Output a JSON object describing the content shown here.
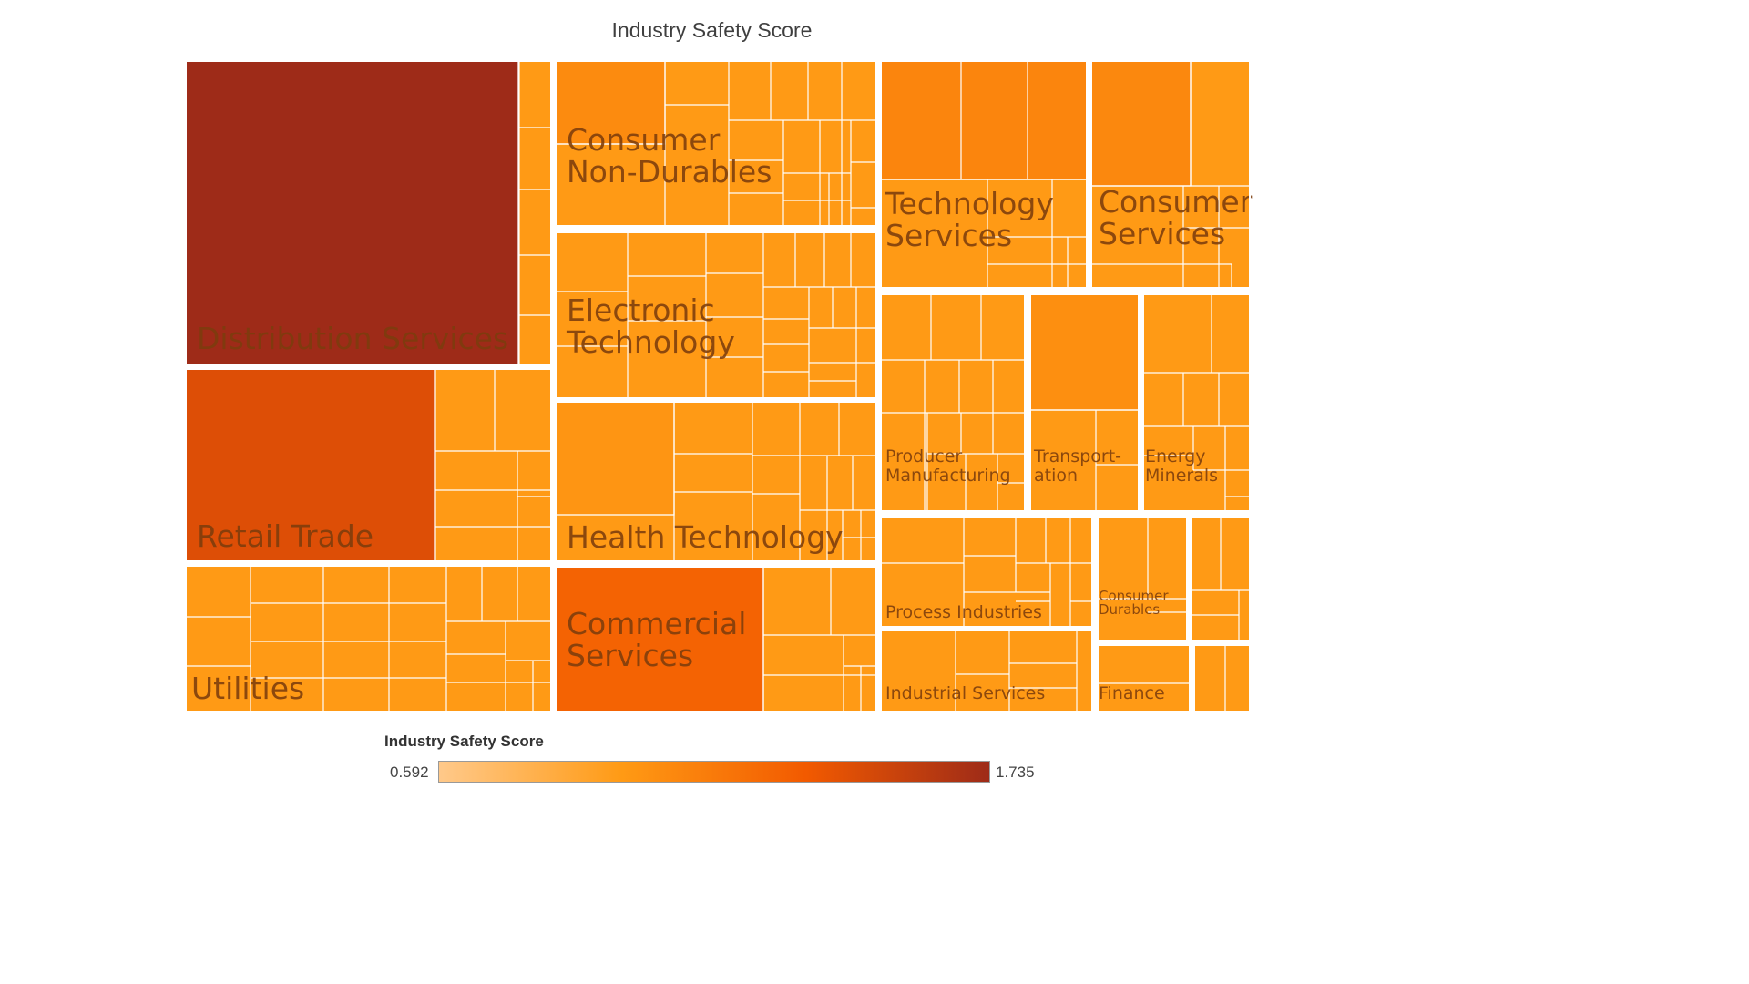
{
  "chart_data": {
    "type": "treemap",
    "title": "Industry Safety Score",
    "color_scale": {
      "min": 0.592,
      "max": 1.735,
      "min_label": "0.592",
      "max_label": "1.735",
      "colors": [
        "#ffc98a",
        "#ff9a14",
        "#f25a00",
        "#9e2b18"
      ]
    },
    "legend": {
      "title": "Industry Safety Score",
      "placement": "bottom-center"
    },
    "sectors": [
      {
        "name": "Distribution Services",
        "label_lines": [
          "Distribution Services"
        ],
        "score": 1.735,
        "label_size": "large"
      },
      {
        "name": "Retail Trade",
        "label_lines": [
          "Retail Trade"
        ],
        "score": 1.45,
        "label_size": "large"
      },
      {
        "name": "Utilities",
        "label_lines": [
          "Utilities"
        ],
        "score": 0.98,
        "label_size": "large"
      },
      {
        "name": "Consumer Non-Durables",
        "label_lines": [
          "Consumer",
          "Non-Durables"
        ],
        "score": 1.06,
        "label_size": "large"
      },
      {
        "name": "Electronic Technology",
        "label_lines": [
          "Electronic",
          "Technology"
        ],
        "score": 1.0,
        "label_size": "large"
      },
      {
        "name": "Health Technology",
        "label_lines": [
          "Health Technology"
        ],
        "score": 1.0,
        "label_size": "large"
      },
      {
        "name": "Commercial Services",
        "label_lines": [
          "Commercial",
          "Services"
        ],
        "score": 1.3,
        "label_size": "large"
      },
      {
        "name": "Technology Services",
        "label_lines": [
          "Technology",
          "Services"
        ],
        "score": 1.1,
        "label_size": "large"
      },
      {
        "name": "Consumer Services",
        "label_lines": [
          "Consumer",
          "Services"
        ],
        "score": 1.08,
        "label_size": "large"
      },
      {
        "name": "Producer Manufacturing",
        "label_lines": [
          "Producer",
          "Manufacturing"
        ],
        "score": 0.97,
        "label_size": "medium"
      },
      {
        "name": "Transportation",
        "label_lines": [
          "Transport-",
          "ation"
        ],
        "score": 1.04,
        "label_size": "medium"
      },
      {
        "name": "Energy Minerals",
        "label_lines": [
          "Energy",
          "Minerals"
        ],
        "score": 0.97,
        "label_size": "medium"
      },
      {
        "name": "Process Industries",
        "label_lines": [
          "Process Industries"
        ],
        "score": 0.98,
        "label_size": "medium"
      },
      {
        "name": "Consumer Durables",
        "label_lines": [
          "Consumer",
          "Durables"
        ],
        "score": 0.97,
        "label_size": "small"
      },
      {
        "name": "Industrial Services",
        "label_lines": [
          "Industrial Services"
        ],
        "score": 0.97,
        "label_size": "medium"
      },
      {
        "name": "Finance",
        "label_lines": [
          "Finance"
        ],
        "score": 0.97,
        "label_size": "medium"
      }
    ]
  }
}
